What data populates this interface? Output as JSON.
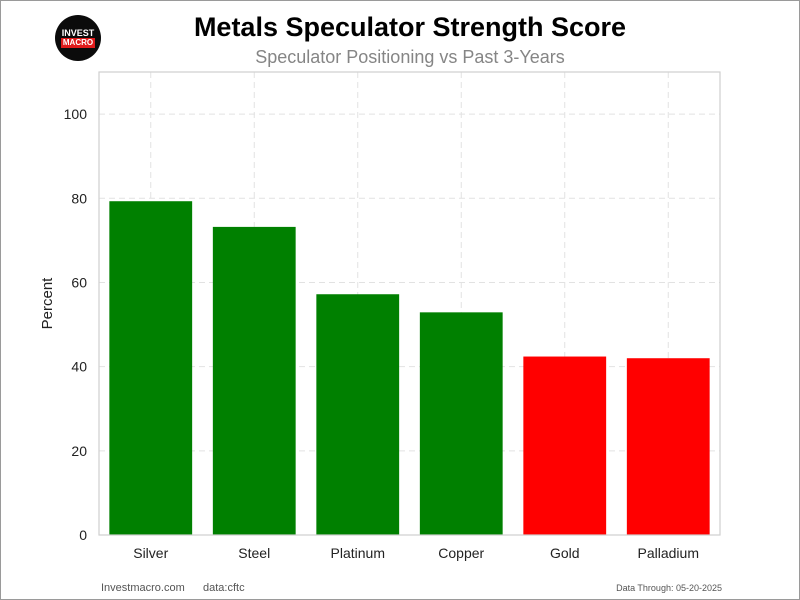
{
  "logo": {
    "line1": "INVEST",
    "line2": "MACRO"
  },
  "chart_data": {
    "type": "bar",
    "title": "Metals Speculator Strength Score",
    "subtitle": "Speculator Positioning vs Past 3-Years",
    "xlabel": "",
    "ylabel": "Percent",
    "categories": [
      "Silver",
      "Steel",
      "Platinum",
      "Copper",
      "Gold",
      "Palladium"
    ],
    "values": [
      79.3,
      73.2,
      57.2,
      52.9,
      42.4,
      42.0
    ],
    "colors": [
      "#008000",
      "#008000",
      "#008000",
      "#008000",
      "#ff0000",
      "#ff0000"
    ],
    "ylim": [
      0,
      110
    ],
    "yticks": [
      0,
      20,
      40,
      60,
      80,
      100
    ],
    "grid": true
  },
  "footer": {
    "site": "Investmacro.com",
    "source": "data:cftc",
    "through": "Data Through: 05-20-2025"
  }
}
